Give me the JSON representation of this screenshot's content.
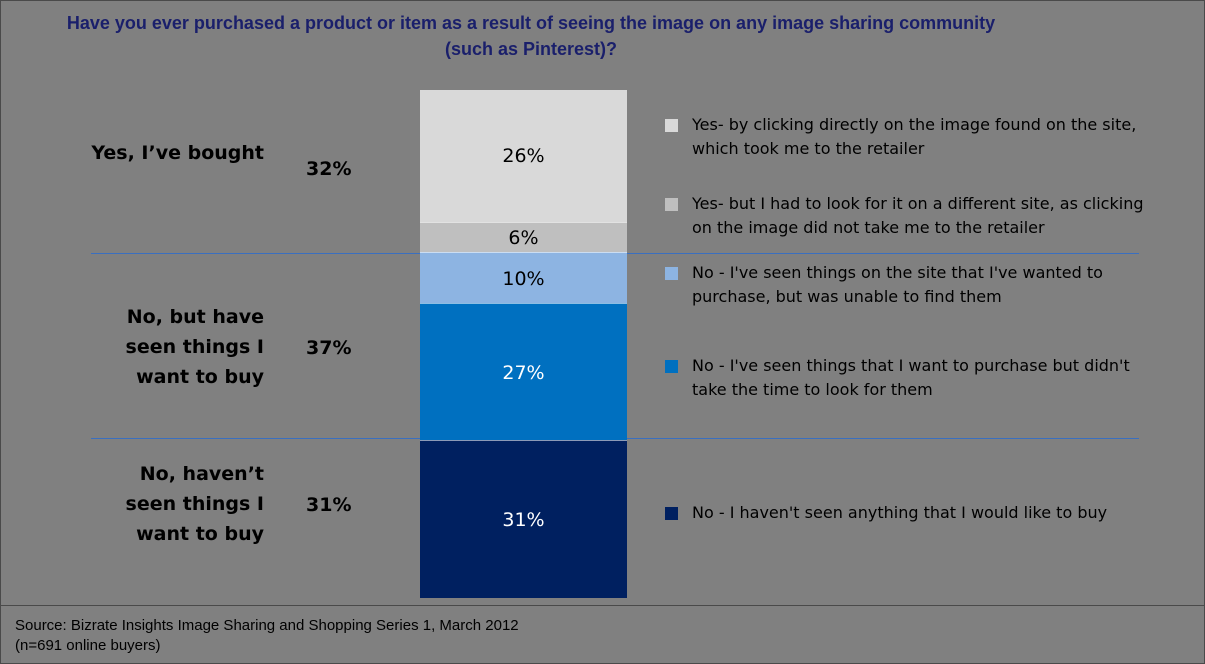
{
  "chart_data": {
    "type": "bar",
    "title": "Have you ever purchased a product or item as a result of seeing the image on any image sharing community (such as Pinterest)?",
    "groups": [
      {
        "label": "Yes, I’ve bought",
        "total": "32%"
      },
      {
        "label": "No, but have seen things I want to buy",
        "total": "37%"
      },
      {
        "label": "No, haven’t seen things I want to buy",
        "total": "31%"
      }
    ],
    "series": [
      {
        "name": "Yes- by clicking directly on the image found on the site, which took me to the retailer",
        "value": 26,
        "label": "26%",
        "color": "#d9d9d9",
        "text_color": "#000000"
      },
      {
        "name": "Yes- but I had to look for it on a different site, as clicking on the image did not take me to the retailer",
        "value": 6,
        "label": "6%",
        "color": "#bfbfbf",
        "text_color": "#000000"
      },
      {
        "name": "No - I've seen things on the site that I've wanted to purchase, but was unable to find them",
        "value": 10,
        "label": "10%",
        "color": "#8db4e2",
        "text_color": "#000000"
      },
      {
        "name": "No - I've seen things that I want to purchase but didn't take the time to look for them",
        "value": 27,
        "label": "27%",
        "color": "#0070c0",
        "text_color": "#ffffff"
      },
      {
        "name": "No - I haven't seen anything that I would like to buy",
        "value": 31,
        "label": "31%",
        "color": "#002060",
        "text_color": "#ffffff"
      }
    ]
  },
  "source": {
    "line1": "Source: Bizrate Insights Image Sharing and Shopping Series 1, March 2012",
    "line2": "(n=691 online buyers)"
  }
}
